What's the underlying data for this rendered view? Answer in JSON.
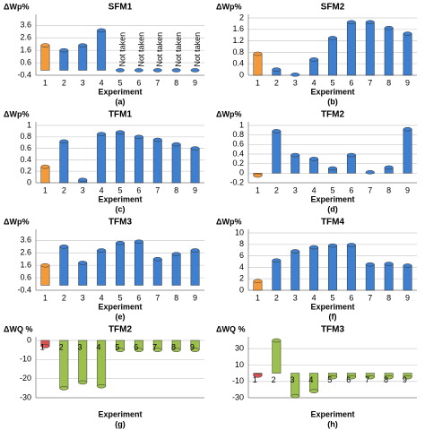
{
  "chart_data": [
    {
      "type": "bar",
      "title": "SFM1",
      "ylabel": "ΔWp%",
      "xlabel": "Experiment",
      "panel": "(a)",
      "categories": [
        "1",
        "2",
        "3",
        "4",
        "5",
        "6",
        "7",
        "8",
        "9"
      ],
      "values": [
        2.0,
        1.6,
        2.0,
        3.2,
        null,
        null,
        null,
        null,
        null
      ],
      "value_labels": [
        null,
        null,
        null,
        null,
        "Not taken",
        "Not taken",
        "Not taken",
        "Not taken",
        "Not taken"
      ],
      "colors": [
        "#f39a3a",
        "#3f7fcf",
        "#3f7fcf",
        "#3f7fcf",
        "#3f7fcf",
        "#3f7fcf",
        "#3f7fcf",
        "#3f7fcf",
        "#3f7fcf"
      ],
      "ylim": [
        -0.4,
        4.2
      ],
      "yticks": [
        -0.4,
        0.6,
        1.6,
        2.6,
        3.6
      ],
      "grid": true
    },
    {
      "type": "bar",
      "title": "SFM2",
      "ylabel": "ΔWp%",
      "xlabel": "Experiment",
      "panel": "(b)",
      "categories": [
        "1",
        "2",
        "3",
        "4",
        "5",
        "6",
        "7",
        "8",
        "9"
      ],
      "values": [
        0.75,
        0.2,
        0.02,
        0.55,
        1.3,
        1.85,
        1.85,
        1.65,
        1.45
      ],
      "colors": [
        "#f39a3a",
        "#3f7fcf",
        "#3f7fcf",
        "#3f7fcf",
        "#3f7fcf",
        "#3f7fcf",
        "#3f7fcf",
        "#3f7fcf",
        "#3f7fcf"
      ],
      "ylim": [
        0,
        2
      ],
      "yticks": [
        0,
        0.4,
        0.8,
        1.2,
        1.6,
        2
      ],
      "grid": true
    },
    {
      "type": "bar",
      "title": "TFM1",
      "ylabel": "ΔWp%",
      "xlabel": "Experiment",
      "panel": "(c)",
      "categories": [
        "1",
        "2",
        "3",
        "4",
        "5",
        "6",
        "7",
        "8",
        "9"
      ],
      "values": [
        0.28,
        0.72,
        0.05,
        0.85,
        0.88,
        0.8,
        0.75,
        0.67,
        0.6
      ],
      "colors": [
        "#f39a3a",
        "#3f7fcf",
        "#3f7fcf",
        "#3f7fcf",
        "#3f7fcf",
        "#3f7fcf",
        "#3f7fcf",
        "#3f7fcf",
        "#3f7fcf"
      ],
      "ylim": [
        0,
        1
      ],
      "yticks": [
        0,
        0.2,
        0.4,
        0.6,
        0.8,
        1
      ],
      "grid": true
    },
    {
      "type": "bar",
      "title": "TFM2",
      "ylabel": "ΔWp%",
      "xlabel": "Experiment",
      "panel": "(d)",
      "categories": [
        "1",
        "2",
        "3",
        "4",
        "5",
        "6",
        "7",
        "8",
        "9"
      ],
      "values": [
        -0.05,
        0.88,
        0.38,
        0.3,
        0.1,
        0.38,
        0.02,
        0.12,
        0.92
      ],
      "colors": [
        "#f39a3a",
        "#3f7fcf",
        "#3f7fcf",
        "#3f7fcf",
        "#3f7fcf",
        "#3f7fcf",
        "#3f7fcf",
        "#3f7fcf",
        "#3f7fcf"
      ],
      "ylim": [
        -0.2,
        1
      ],
      "yticks": [
        -0.2,
        0,
        0.2,
        0.4,
        0.6,
        0.8,
        1
      ],
      "grid": true
    },
    {
      "type": "bar",
      "title": "TFM3",
      "ylabel": "ΔWp%",
      "xlabel": "Experiment",
      "panel": "(e)",
      "categories": [
        "1",
        "2",
        "3",
        "4",
        "5",
        "6",
        "7",
        "8",
        "9"
      ],
      "values": [
        1.6,
        3.1,
        1.8,
        2.8,
        3.4,
        3.5,
        2.1,
        2.5,
        2.8
      ],
      "colors": [
        "#f39a3a",
        "#3f7fcf",
        "#3f7fcf",
        "#3f7fcf",
        "#3f7fcf",
        "#3f7fcf",
        "#3f7fcf",
        "#3f7fcf",
        "#3f7fcf"
      ],
      "ylim": [
        -0.4,
        4.2
      ],
      "yticks": [
        -0.4,
        0.6,
        1.6,
        2.6,
        3.6
      ],
      "grid": true
    },
    {
      "type": "bar",
      "title": "TFM4",
      "ylabel": "ΔWp%",
      "xlabel": "Experiment",
      "panel": "(f)",
      "categories": [
        "1",
        "2",
        "3",
        "4",
        "5",
        "6",
        "7",
        "8",
        "9"
      ],
      "values": [
        1.6,
        5.2,
        6.8,
        7.5,
        7.8,
        7.9,
        4.5,
        4.6,
        4.3
      ],
      "colors": [
        "#f39a3a",
        "#3f7fcf",
        "#3f7fcf",
        "#3f7fcf",
        "#3f7fcf",
        "#3f7fcf",
        "#3f7fcf",
        "#3f7fcf",
        "#3f7fcf"
      ],
      "ylim": [
        0,
        10
      ],
      "yticks": [
        0,
        2,
        4,
        6,
        8,
        10
      ],
      "grid": true
    },
    {
      "type": "bar",
      "title": "TFM2",
      "ylabel": "ΔWQ %",
      "xlabel": "Experiment",
      "panel": "(g)",
      "category_labels": "inside",
      "categories": [
        "1",
        "2",
        "3",
        "4",
        "5",
        "6",
        "7",
        "8",
        "9"
      ],
      "values": [
        -3,
        -25,
        -22,
        -24,
        -5,
        -5,
        -5,
        -5,
        -5
      ],
      "colors": [
        "#d9534f",
        "#9bc04b",
        "#9bc04b",
        "#9bc04b",
        "#9bc04b",
        "#9bc04b",
        "#9bc04b",
        "#9bc04b",
        "#9bc04b"
      ],
      "ylim": [
        -30,
        0
      ],
      "yticks": [
        0,
        -10,
        -20,
        -30
      ],
      "grid": true
    },
    {
      "type": "bar",
      "title": "TFM3",
      "ylabel": "ΔWQ %",
      "xlabel": "Experiment",
      "panel": "(h)",
      "category_labels": "inside",
      "categories": [
        "1",
        "2",
        "3",
        "4",
        "5",
        "6",
        "7",
        "8",
        "9"
      ],
      "values": [
        -3,
        40,
        -28,
        -22,
        -5,
        -5,
        -5,
        -5,
        -5
      ],
      "colors": [
        "#d9534f",
        "#9bc04b",
        "#9bc04b",
        "#9bc04b",
        "#9bc04b",
        "#9bc04b",
        "#9bc04b",
        "#9bc04b",
        "#9bc04b"
      ],
      "ylim": [
        -30,
        40
      ],
      "yticks": [
        -30,
        -10,
        10,
        30
      ],
      "grid": true
    }
  ]
}
